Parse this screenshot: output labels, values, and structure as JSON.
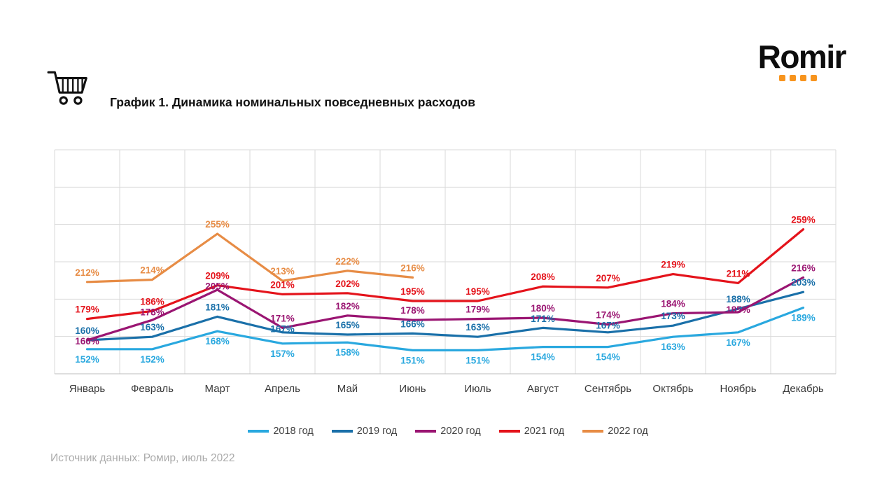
{
  "logo": {
    "text": "Romir",
    "accent_color": "#F7941E"
  },
  "header": {
    "title": "График 1. Динамика номинальных повседневных расходов"
  },
  "source": "Источник данных: Ромир, июль 2022",
  "chart_data": {
    "type": "line",
    "title": "График 1. Динамика номинальных повседневных расходов",
    "unit": "%",
    "xlabel": "",
    "ylabel": "",
    "ylim": [
      130,
      330
    ],
    "grid": true,
    "legend_position": "bottom",
    "categories": [
      "Январь",
      "Февраль",
      "Март",
      "Апрель",
      "Май",
      "Июнь",
      "Июль",
      "Август",
      "Сентябрь",
      "Октябрь",
      "Ноябрь",
      "Декабрь"
    ],
    "series": [
      {
        "name": "2018 год",
        "color": "#29A8DF",
        "label_position": "below",
        "values": [
          152,
          152,
          168,
          157,
          158,
          151,
          151,
          154,
          154,
          163,
          167,
          189
        ]
      },
      {
        "name": "2019 год",
        "color": "#1A70A9",
        "label_position": "above",
        "values": [
          160,
          163,
          181,
          167,
          165,
          166,
          163,
          171,
          167,
          173,
          188,
          203
        ]
      },
      {
        "name": "2020 год",
        "color": "#9A1572",
        "label_position": "above",
        "values": [
          160,
          178,
          205,
          171,
          182,
          178,
          179,
          180,
          174,
          184,
          185,
          216
        ]
      },
      {
        "name": "2021 год",
        "color": "#E4131B",
        "label_position": "above",
        "values": [
          179,
          186,
          209,
          201,
          202,
          195,
          195,
          208,
          207,
          219,
          211,
          259
        ]
      },
      {
        "name": "2022 год",
        "color": "#E78C45",
        "label_position": "above",
        "values": [
          212,
          214,
          255,
          213,
          222,
          216,
          null,
          null,
          null,
          null,
          null,
          null
        ]
      }
    ]
  }
}
